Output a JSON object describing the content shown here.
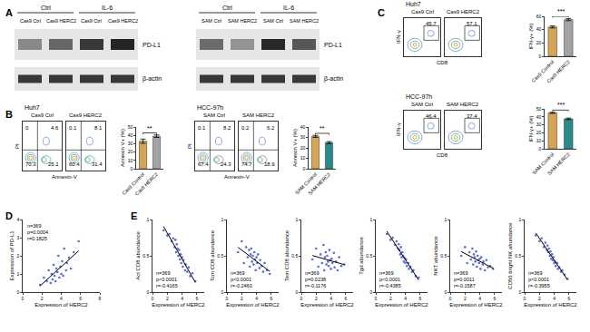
{
  "panel_labels": [
    "A",
    "B",
    "C",
    "D",
    "E"
  ],
  "blots": [
    {
      "group_labels": [
        "Ctrl",
        "IL-6"
      ],
      "lanes": [
        "Cas9 Ctrl",
        "Cas9 HERC2",
        "Cas9 Ctrl",
        "Cas9 HERC2"
      ],
      "rows": [
        "PD-L1",
        "β-actin"
      ],
      "band_intensity": [
        [
          0.45,
          0.62,
          0.85,
          0.95
        ],
        [
          0.85,
          0.85,
          0.85,
          0.85
        ]
      ]
    },
    {
      "group_labels": [
        "Ctrl",
        "IL-6"
      ],
      "lanes": [
        "SAM Ctrl",
        "SAM HERC2",
        "SAM Ctrl",
        "SAM HERC2"
      ],
      "rows": [
        "PD-L1",
        "β-actin"
      ],
      "band_intensity": [
        [
          0.6,
          0.4,
          0.92,
          0.7
        ],
        [
          0.85,
          0.85,
          0.85,
          0.85
        ]
      ]
    }
  ],
  "flow_cytometry": [
    {
      "cell_line": "Huh7",
      "x_label": "Annexin-V",
      "y_label": "PI",
      "plots": [
        {
          "title": "Cas9 Ctrl",
          "quadrants": {
            "ul": 0,
            "ur": 4.6,
            "ll": 70.3,
            "lr": 25.1
          }
        },
        {
          "title": "Cas9 HERC2",
          "quadrants": {
            "ul": 0.1,
            "ur": 8.1,
            "ll": 60.4,
            "lr": 31.4
          }
        }
      ]
    },
    {
      "cell_line": "HCC-97h",
      "x_label": "Annexin-V",
      "y_label": "PI",
      "plots": [
        {
          "title": "SAM Ctrl",
          "quadrants": {
            "ul": 0.1,
            "ur": 8.2,
            "ll": 67.4,
            "lr": 24.3
          }
        },
        {
          "title": "SAM HERC2",
          "quadrants": {
            "ul": 0.2,
            "ur": 6.2,
            "ll": 74.7,
            "lr": 18.9
          }
        }
      ]
    },
    {
      "cell_line": "Huh7",
      "x_label": "CD8",
      "y_label": "IFN-γ",
      "plots": [
        {
          "title": "Cas9 Ctrl",
          "gate": 45.7
        },
        {
          "title": "Cas9 HERC2",
          "gate": 57.1
        }
      ]
    },
    {
      "cell_line": "HCC-97h",
      "x_label": "CD8",
      "y_label": "IFN-γ",
      "plots": [
        {
          "title": "SAM Ctrl",
          "gate": 46.4
        },
        {
          "title": "SAM HERC2",
          "gate": 37.4
        }
      ]
    }
  ],
  "chart_data": [
    {
      "type": "bar",
      "categories": [
        "Cas9 Control",
        "Cas9 HERC2"
      ],
      "values": [
        33,
        39
      ],
      "errors": [
        2.5,
        1.5
      ],
      "colors": [
        "#d6a455",
        "#a3a3a3"
      ],
      "y_label": "Annexin V+ (%)",
      "ylim": [
        0,
        50
      ],
      "yticks": [
        0,
        10,
        20,
        30,
        40,
        50
      ],
      "significance": "**"
    },
    {
      "type": "bar",
      "categories": [
        "SAM Control",
        "SAM HERC2"
      ],
      "values": [
        31,
        25
      ],
      "errors": [
        1,
        1
      ],
      "colors": [
        "#d6a455",
        "#2a8a8c"
      ],
      "y_label": "Annexin V+ (%)",
      "ylim": [
        0,
        40
      ],
      "yticks": [
        0,
        10,
        20,
        30,
        40
      ],
      "significance": "**"
    },
    {
      "type": "bar",
      "categories": [
        "Cas9 Control",
        "Cas9 HERC2"
      ],
      "values": [
        44,
        55
      ],
      "errors": [
        1.5,
        1.5
      ],
      "colors": [
        "#d6a455",
        "#a3a3a3"
      ],
      "y_label": "IFN-γ+ (%)",
      "ylim": [
        0,
        60
      ],
      "yticks": [
        0,
        20,
        40,
        60
      ],
      "significance": "***"
    },
    {
      "type": "bar",
      "categories": [
        "SAM Control",
        "SAM HERC2"
      ],
      "values": [
        45,
        37.5
      ],
      "errors": [
        0.7,
        1
      ],
      "colors": [
        "#d6a455",
        "#2a8a8c"
      ],
      "y_label": "IFN-γ+ (%)",
      "ylim": [
        0,
        50
      ],
      "yticks": [
        0,
        10,
        20,
        30,
        40,
        50
      ],
      "significance": "***"
    },
    {
      "type": "scatter",
      "x_label": "Expression of HERC2",
      "y_label": "Expression of PD-L1",
      "color": "#5b6fd0",
      "x": [
        1.8,
        2.2,
        2.5,
        2.7,
        2.9,
        3.0,
        3.1,
        3.2,
        3.3,
        3.4,
        3.5,
        3.6,
        3.7,
        3.8,
        3.9,
        4.0,
        4.1,
        4.2,
        4.3,
        4.5,
        4.6,
        4.8,
        5.0,
        5.3,
        5.8
      ],
      "y": [
        0.4,
        0.8,
        0.6,
        1.2,
        0.5,
        1.0,
        0.7,
        1.5,
        0.9,
        0.6,
        1.3,
        1.1,
        2.0,
        0.8,
        1.4,
        1.0,
        1.7,
        0.9,
        2.4,
        1.2,
        1.6,
        1.9,
        1.3,
        2.2,
        2.8
      ],
      "xlim": [
        0,
        8
      ],
      "xticks": [
        0,
        2,
        4,
        6,
        8
      ],
      "ylim": [
        0,
        4
      ],
      "yticks": [
        0,
        1,
        2,
        3,
        4
      ],
      "stats": [
        "n=369",
        "p=0.0004",
        "r=0.1825"
      ]
    },
    {
      "type": "scatter",
      "x_label": "Expression of HERC2",
      "y_label": "Act CD8 abundance",
      "color": "#5b6fd0",
      "x": [
        1.5,
        2.0,
        2.3,
        2.6,
        2.8,
        3.0,
        3.1,
        3.2,
        3.3,
        3.4,
        3.5,
        3.6,
        3.7,
        3.8,
        3.9,
        4.0,
        4.1,
        4.2,
        4.4,
        4.5,
        4.7,
        4.9,
        5.1,
        5.4,
        5.8
      ],
      "y": [
        0.85,
        0.78,
        0.8,
        0.7,
        0.74,
        0.62,
        0.72,
        0.55,
        0.66,
        0.6,
        0.5,
        0.58,
        0.45,
        0.52,
        0.4,
        0.48,
        0.35,
        0.44,
        0.3,
        0.38,
        0.28,
        0.34,
        0.22,
        0.26,
        0.15
      ],
      "xlim": [
        0,
        7
      ],
      "xticks": [
        0,
        2,
        4,
        6
      ],
      "ylim": [
        0,
        1
      ],
      "yticks": [
        0,
        0.5,
        1
      ],
      "stats": [
        "n=369",
        "p<0.0001",
        "r=-0.4165"
      ]
    },
    {
      "type": "scatter",
      "x_label": "Expression of HERC2",
      "y_label": "Tcm CD8 abundance",
      "color": "#5b6fd0",
      "x": [
        1.5,
        2.0,
        2.3,
        2.6,
        2.8,
        3.0,
        3.1,
        3.2,
        3.3,
        3.4,
        3.5,
        3.6,
        3.7,
        3.8,
        3.9,
        4.0,
        4.1,
        4.2,
        4.4,
        4.5,
        4.7,
        4.9,
        5.1,
        5.4,
        5.8
      ],
      "y": [
        0.55,
        0.7,
        0.4,
        0.62,
        0.48,
        0.58,
        0.35,
        0.52,
        0.6,
        0.42,
        0.5,
        0.38,
        0.55,
        0.45,
        0.3,
        0.48,
        0.4,
        0.52,
        0.33,
        0.44,
        0.36,
        0.28,
        0.4,
        0.3,
        0.25
      ],
      "xlim": [
        0,
        7
      ],
      "xticks": [
        0,
        2,
        4,
        6
      ],
      "ylim": [
        0,
        1
      ],
      "yticks": [
        0,
        0.5,
        1
      ],
      "stats": [
        "n=369",
        "p<0.0001",
        "r=-0.2460"
      ]
    },
    {
      "type": "scatter",
      "x_label": "Expression of HERC2",
      "y_label": "Tem CD8 abundance",
      "color": "#5b6fd0",
      "x": [
        1.5,
        2.0,
        2.3,
        2.6,
        2.8,
        3.0,
        3.1,
        3.2,
        3.3,
        3.4,
        3.5,
        3.6,
        3.7,
        3.8,
        3.9,
        4.0,
        4.1,
        4.2,
        4.4,
        4.5,
        4.7,
        4.9,
        5.1,
        5.4,
        5.8
      ],
      "y": [
        0.45,
        0.6,
        0.35,
        0.52,
        0.4,
        0.65,
        0.3,
        0.48,
        0.55,
        0.38,
        0.5,
        0.42,
        0.36,
        0.58,
        0.44,
        0.32,
        0.46,
        0.4,
        0.54,
        0.34,
        0.42,
        0.3,
        0.48,
        0.36,
        0.38
      ],
      "xlim": [
        0,
        7
      ],
      "xticks": [
        0,
        2,
        4,
        6
      ],
      "ylim": [
        0,
        1
      ],
      "yticks": [
        0,
        0.5,
        1
      ],
      "stats": [
        "n=369",
        "p=0.0238",
        "r=-0.1176"
      ]
    },
    {
      "type": "scatter",
      "x_label": "Expression of HERC2",
      "y_label": "Tgd abundance",
      "color": "#5b6fd0",
      "x": [
        1.5,
        2.0,
        2.3,
        2.6,
        2.8,
        3.0,
        3.1,
        3.2,
        3.3,
        3.4,
        3.5,
        3.6,
        3.7,
        3.8,
        3.9,
        4.0,
        4.1,
        4.2,
        4.4,
        4.5,
        4.7,
        4.9,
        5.1,
        5.4,
        5.8
      ],
      "y": [
        0.8,
        0.72,
        0.75,
        0.65,
        0.7,
        0.6,
        0.66,
        0.58,
        0.52,
        0.62,
        0.48,
        0.55,
        0.5,
        0.42,
        0.47,
        0.4,
        0.45,
        0.36,
        0.4,
        0.32,
        0.35,
        0.28,
        0.3,
        0.22,
        0.2
      ],
      "xlim": [
        0,
        7
      ],
      "xticks": [
        0,
        2,
        4,
        6
      ],
      "ylim": [
        0,
        1
      ],
      "yticks": [
        0,
        0.5,
        1
      ],
      "stats": [
        "n=369",
        "p<0.0001",
        "r=-0.4385"
      ]
    },
    {
      "type": "scatter",
      "x_label": "Expression of HERC2",
      "y_label": "NKT abundance",
      "color": "#5b6fd0",
      "x": [
        1.5,
        2.0,
        2.3,
        2.6,
        2.8,
        3.0,
        3.1,
        3.2,
        3.3,
        3.4,
        3.5,
        3.6,
        3.7,
        3.8,
        3.9,
        4.0,
        4.1,
        4.2,
        4.4,
        4.5,
        4.7,
        4.9,
        5.1,
        5.4,
        5.8
      ],
      "y": [
        0.5,
        0.62,
        0.4,
        0.55,
        0.45,
        0.6,
        0.38,
        0.52,
        0.48,
        0.42,
        0.56,
        0.35,
        0.5,
        0.44,
        0.4,
        0.46,
        0.32,
        0.48,
        0.38,
        0.42,
        0.3,
        0.44,
        0.34,
        0.36,
        0.32
      ],
      "xlim": [
        0,
        7
      ],
      "xticks": [
        0,
        2,
        4,
        6
      ],
      "ylim": [
        0,
        1
      ],
      "yticks": [
        0,
        0.5,
        1
      ],
      "stats": [
        "n=369",
        "p=0.0011",
        "r=-0.1587"
      ]
    },
    {
      "type": "scatter",
      "x_label": "Expression of HERC2",
      "y_label": "CD56 bright NK abundance",
      "color": "#5b6fd0",
      "x": [
        1.5,
        2.0,
        2.3,
        2.6,
        2.8,
        3.0,
        3.1,
        3.2,
        3.3,
        3.4,
        3.5,
        3.6,
        3.7,
        3.8,
        3.9,
        4.0,
        4.1,
        4.2,
        4.4,
        4.5,
        4.7,
        4.9,
        5.1,
        5.4,
        5.8
      ],
      "y": [
        0.78,
        0.7,
        0.74,
        0.62,
        0.68,
        0.58,
        0.64,
        0.55,
        0.6,
        0.5,
        0.56,
        0.46,
        0.52,
        0.44,
        0.48,
        0.4,
        0.42,
        0.36,
        0.4,
        0.32,
        0.34,
        0.28,
        0.3,
        0.24,
        0.18
      ],
      "xlim": [
        0,
        7
      ],
      "xticks": [
        0,
        2,
        4,
        6
      ],
      "ylim": [
        0,
        1
      ],
      "yticks": [
        0,
        0.5,
        1
      ],
      "stats": [
        "n=369",
        "p<0.0001",
        "r=-0.3955"
      ]
    }
  ]
}
